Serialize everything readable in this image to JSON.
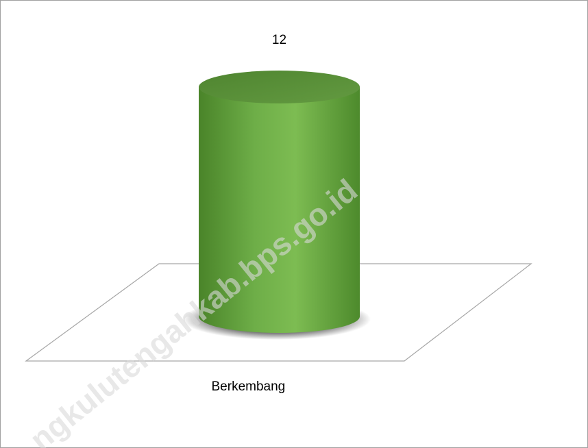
{
  "chart_data": {
    "type": "cylinder",
    "categories": [
      "Berkembang"
    ],
    "values": [
      12
    ],
    "color": "#6aaa45",
    "data_labels": true,
    "watermark": "ngkulutengahkab.bps.go.id"
  }
}
